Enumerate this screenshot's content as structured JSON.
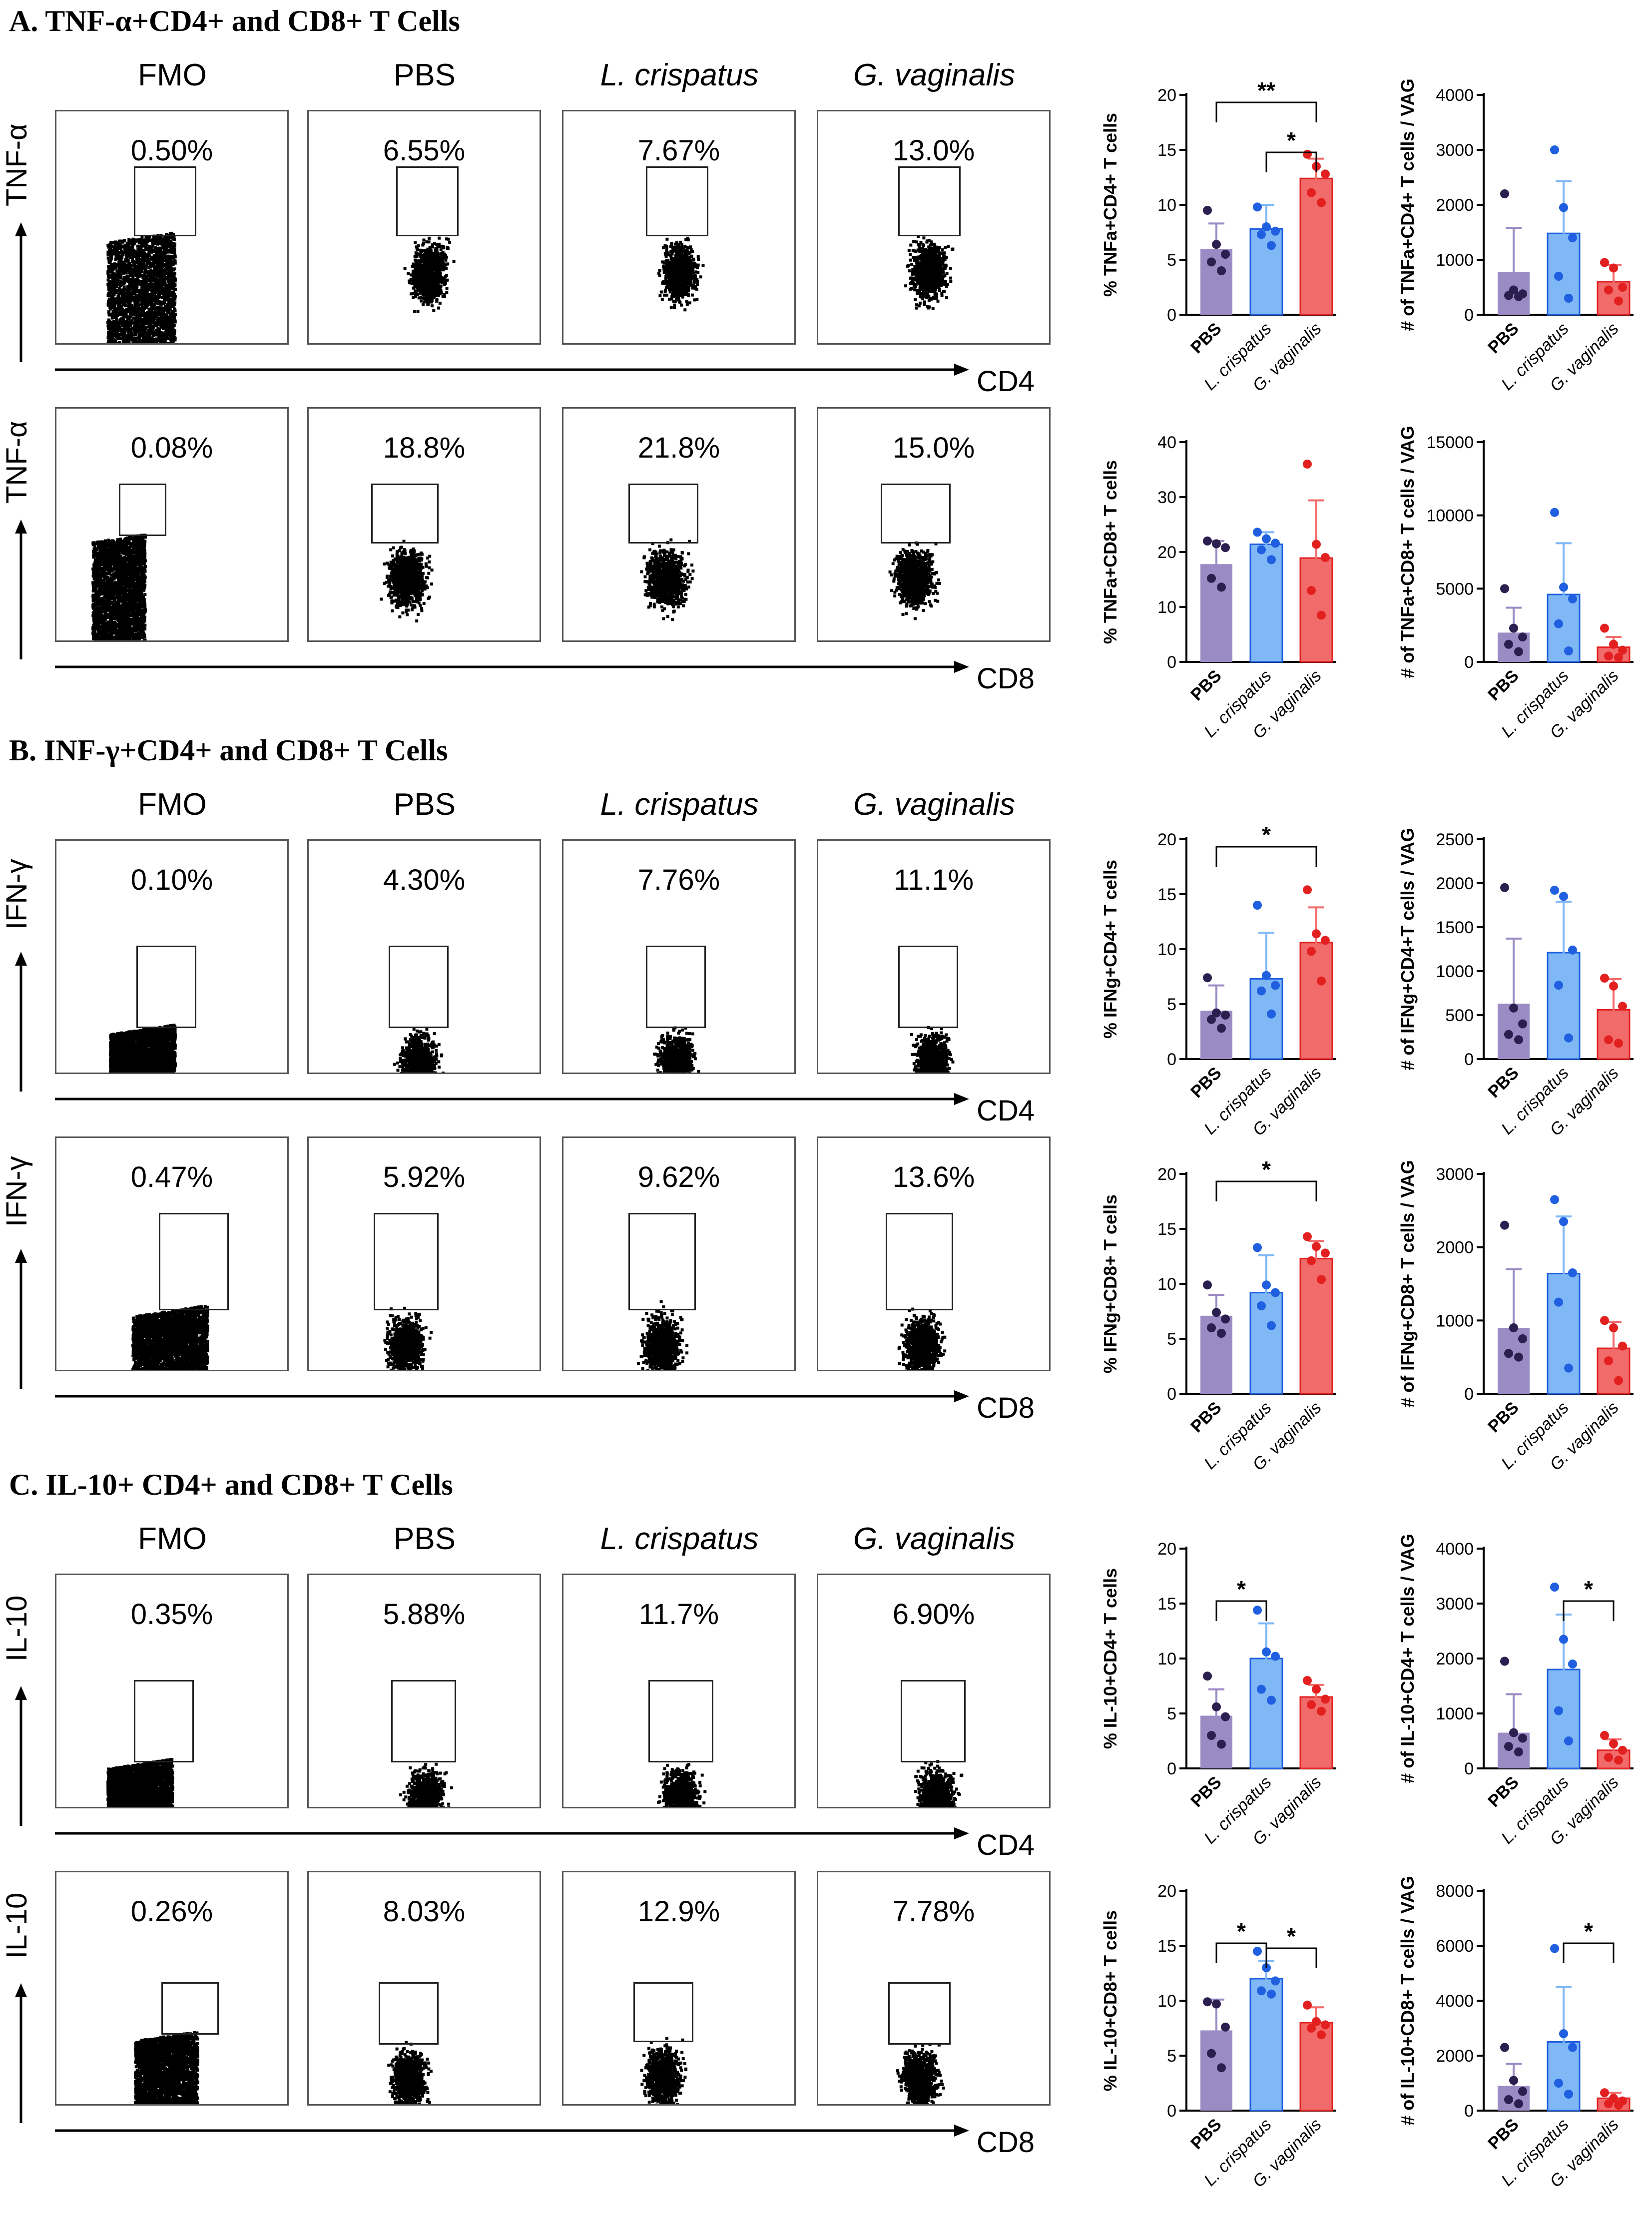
{
  "sections": [
    {
      "title": "A. TNF-α+CD4+ and CD8+ T Cells",
      "columns": [
        "FMO",
        "PBS",
        "L. crispatus",
        "G. vaginalis"
      ],
      "rows": [
        {
          "marker": "TNF-α",
          "xaxis": "CD4",
          "percents": [
            "0.50%",
            "6.55%",
            "7.67%",
            "13.0%"
          ]
        },
        {
          "marker": "TNF-α",
          "xaxis": "CD8",
          "percents": [
            "0.08%",
            "18.8%",
            "21.8%",
            "15.0%"
          ]
        }
      ]
    },
    {
      "title": "B. INF-γ+CD4+ and CD8+ T Cells",
      "columns": [
        "FMO",
        "PBS",
        "L. crispatus",
        "G. vaginalis"
      ],
      "rows": [
        {
          "marker": "IFN-γ",
          "xaxis": "CD4",
          "percents": [
            "0.10%",
            "4.30%",
            "7.76%",
            "11.1%"
          ]
        },
        {
          "marker": "IFN-γ",
          "xaxis": "CD8",
          "percents": [
            "0.47%",
            "5.92%",
            "9.62%",
            "13.6%"
          ]
        }
      ]
    },
    {
      "title": "C. IL-10+ CD4+ and CD8+ T Cells",
      "columns": [
        "FMO",
        "PBS",
        "L. crispatus",
        "G. vaginalis"
      ],
      "rows": [
        {
          "marker": "IL-10",
          "xaxis": "CD4",
          "percents": [
            "0.35%",
            "5.88%",
            "11.7%",
            "6.90%"
          ]
        },
        {
          "marker": "IL-10",
          "xaxis": "CD8",
          "percents": [
            "0.26%",
            "8.03%",
            "12.9%",
            "7.78%"
          ]
        }
      ]
    }
  ],
  "colors": {
    "PBS": "#9b8bc4",
    "L. crispatus": "#7fb8f5",
    "G. vaginalis": "#f26b6b",
    "PBS_dot": "#2a1f4f",
    "L. crispatus_dot": "#1f5fe0",
    "G. vaginalis_dot": "#e32020"
  },
  "chart_data": [
    {
      "type": "bar",
      "ylabel": "% TNFa+CD4+ T cells",
      "categories": [
        "PBS",
        "L. crispatus",
        "G. vaginalis"
      ],
      "ylim": [
        0,
        20
      ],
      "yticks": [
        0,
        5,
        10,
        15,
        20
      ],
      "values": [
        6.0,
        7.8,
        12.4
      ],
      "errors": [
        2.3,
        2.2,
        1.8
      ],
      "points": [
        [
          9.5,
          6.4,
          5.5,
          4.8,
          4.0
        ],
        [
          9.8,
          8.0,
          7.6,
          7.3,
          6.3
        ],
        [
          14.6,
          13.5,
          12.8,
          11.1,
          10.2
        ]
      ],
      "sig": [
        {
          "from": 0,
          "to": 2,
          "label": "**"
        },
        {
          "from": 1,
          "to": 2,
          "label": "*"
        }
      ]
    },
    {
      "type": "bar",
      "ylabel": "# of TNFa+CD4+ T cells / VAG",
      "categories": [
        "PBS",
        "L. crispatus",
        "G. vaginalis"
      ],
      "ylim": [
        0,
        4000
      ],
      "yticks": [
        0,
        1000,
        2000,
        3000,
        4000
      ],
      "values": [
        780,
        1480,
        600
      ],
      "errors": [
        800,
        950,
        300
      ],
      "points": [
        [
          2200,
          450,
          380,
          350,
          330
        ],
        [
          3000,
          1950,
          1400,
          700,
          300
        ],
        [
          950,
          850,
          500,
          450,
          250
        ]
      ],
      "sig": []
    },
    {
      "type": "bar",
      "ylabel": "% TNFa+CD8+ T cells",
      "categories": [
        "PBS",
        "L. crispatus",
        "G. vaginalis"
      ],
      "ylim": [
        0,
        40
      ],
      "yticks": [
        0,
        10,
        20,
        30,
        40
      ],
      "values": [
        17.8,
        21.4,
        18.9
      ],
      "errors": [
        4.2,
        2.2,
        10.5
      ],
      "points": [
        [
          22,
          21.5,
          20.8,
          15.2,
          13.6
        ],
        [
          23.6,
          22.4,
          21.6,
          20.4,
          18.6
        ],
        [
          36,
          21.4,
          19.0,
          13.0,
          8.5
        ]
      ],
      "sig": []
    },
    {
      "type": "bar",
      "ylabel": "# of TNFa+CD8+ T cells / VAG",
      "categories": [
        "PBS",
        "L. crispatus",
        "G. vaginalis"
      ],
      "ylim": [
        0,
        15000
      ],
      "yticks": [
        0,
        5000,
        10000,
        15000
      ],
      "values": [
        2000,
        4600,
        1000
      ],
      "errors": [
        1700,
        3500,
        700
      ],
      "points": [
        [
          5000,
          2300,
          1700,
          1200,
          700
        ],
        [
          10200,
          5100,
          4300,
          2600,
          750
        ],
        [
          2300,
          1200,
          800,
          400,
          300
        ]
      ],
      "sig": []
    },
    {
      "type": "bar",
      "ylabel": "% IFNg+CD4+ T cells",
      "categories": [
        "PBS",
        "L. crispatus",
        "G. vaginalis"
      ],
      "ylim": [
        0,
        20
      ],
      "yticks": [
        0,
        5,
        10,
        15,
        20
      ],
      "values": [
        4.4,
        7.3,
        10.6
      ],
      "errors": [
        2.3,
        4.2,
        3.2
      ],
      "points": [
        [
          7.4,
          4.2,
          4.0,
          3.6,
          2.8
        ],
        [
          14.0,
          7.6,
          6.7,
          6.2,
          4.1
        ],
        [
          15.4,
          11.4,
          10.8,
          9.8,
          7.1
        ]
      ],
      "sig": [
        {
          "from": 0,
          "to": 2,
          "label": "*"
        }
      ]
    },
    {
      "type": "bar",
      "ylabel": "# of IFNg+CD4+T cells / VAG",
      "categories": [
        "PBS",
        "L. crispatus",
        "G. vaginalis"
      ],
      "ylim": [
        0,
        2500
      ],
      "yticks": [
        0,
        500,
        1000,
        1500,
        2000,
        2500
      ],
      "values": [
        630,
        1210,
        560
      ],
      "errors": [
        740,
        580,
        350
      ],
      "points": [
        [
          1950,
          580,
          400,
          280,
          220
        ],
        [
          1920,
          1850,
          1240,
          840,
          240
        ],
        [
          920,
          830,
          600,
          220,
          180
        ]
      ],
      "sig": []
    },
    {
      "type": "bar",
      "ylabel": "% IFNg+CD8+ T cells",
      "categories": [
        "PBS",
        "L. crispatus",
        "G. vaginalis"
      ],
      "ylim": [
        0,
        20
      ],
      "yticks": [
        0,
        5,
        10,
        15,
        20
      ],
      "values": [
        7.1,
        9.2,
        12.3
      ],
      "errors": [
        1.9,
        3.4,
        1.6
      ],
      "points": [
        [
          9.9,
          7.4,
          6.8,
          6.0,
          5.5
        ],
        [
          13.3,
          9.9,
          9.2,
          8.0,
          6.2
        ],
        [
          14.3,
          13.4,
          12.8,
          12.1,
          10.4
        ]
      ],
      "sig": [
        {
          "from": 0,
          "to": 2,
          "label": "*"
        }
      ]
    },
    {
      "type": "bar",
      "ylabel": "# of IFNg+CD8+ T cells / VAG",
      "categories": [
        "PBS",
        "L. crispatus",
        "G. vaginalis"
      ],
      "ylim": [
        0,
        3000
      ],
      "yticks": [
        0,
        1000,
        2000,
        3000
      ],
      "values": [
        900,
        1640,
        620
      ],
      "errors": [
        800,
        780,
        360
      ],
      "points": [
        [
          2300,
          900,
          750,
          550,
          500
        ],
        [
          2650,
          2350,
          1650,
          1250,
          350
        ],
        [
          1000,
          900,
          650,
          450,
          180
        ]
      ],
      "sig": []
    },
    {
      "type": "bar",
      "ylabel": "% IL-10+CD4+ T cells",
      "categories": [
        "PBS",
        "L. crispatus",
        "G. vaginalis"
      ],
      "ylim": [
        0,
        20
      ],
      "yticks": [
        0,
        5,
        10,
        15,
        20
      ],
      "values": [
        4.8,
        10.0,
        6.5
      ],
      "errors": [
        2.4,
        3.2,
        1.1
      ],
      "points": [
        [
          8.4,
          5.6,
          4.7,
          3.0,
          2.2
        ],
        [
          14.4,
          10.6,
          10.2,
          7.2,
          6.2
        ],
        [
          8.0,
          7.2,
          6.3,
          5.8,
          5.2
        ]
      ],
      "sig": [
        {
          "from": 0,
          "to": 1,
          "label": "*"
        }
      ]
    },
    {
      "type": "bar",
      "ylabel": "# of IL-10+CD4+ T cells / VAG",
      "categories": [
        "PBS",
        "L. crispatus",
        "G. vaginalis"
      ],
      "ylim": [
        0,
        4000
      ],
      "yticks": [
        0,
        1000,
        2000,
        3000,
        4000
      ],
      "values": [
        650,
        1800,
        330
      ],
      "errors": [
        700,
        1000,
        200
      ],
      "points": [
        [
          1950,
          650,
          550,
          400,
          300
        ],
        [
          3300,
          2350,
          1900,
          1050,
          500
        ],
        [
          600,
          450,
          330,
          200,
          150
        ]
      ],
      "sig": [
        {
          "from": 1,
          "to": 2,
          "label": "*"
        }
      ]
    },
    {
      "type": "bar",
      "ylabel": "% IL-10+CD8+ T cells",
      "categories": [
        "PBS",
        "L. crispatus",
        "G. vaginalis"
      ],
      "ylim": [
        0,
        20
      ],
      "yticks": [
        0,
        5,
        10,
        15,
        20
      ],
      "values": [
        7.3,
        12.0,
        8.0
      ],
      "errors": [
        2.8,
        1.6,
        1.4
      ],
      "points": [
        [
          9.9,
          9.7,
          7.6,
          5.2,
          3.9
        ],
        [
          14.5,
          13.0,
          11.8,
          10.9,
          10.6
        ],
        [
          9.6,
          8.1,
          7.8,
          7.5,
          6.9
        ]
      ],
      "sig": [
        {
          "from": 0,
          "to": 1,
          "label": "*"
        },
        {
          "from": 1,
          "to": 2,
          "label": "*"
        }
      ]
    },
    {
      "type": "bar",
      "ylabel": "# of IL-10+CD8+ T cells / VAG",
      "categories": [
        "PBS",
        "L. crispatus",
        "G. vaginalis"
      ],
      "ylim": [
        0,
        8000
      ],
      "yticks": [
        0,
        2000,
        4000,
        6000,
        8000
      ],
      "values": [
        900,
        2500,
        450
      ],
      "errors": [
        800,
        2000,
        200
      ],
      "points": [
        [
          2300,
          1100,
          700,
          400,
          250
        ],
        [
          5900,
          2800,
          2300,
          1000,
          600
        ],
        [
          650,
          450,
          350,
          250,
          200
        ]
      ],
      "sig": [
        {
          "from": 1,
          "to": 2,
          "label": "*"
        }
      ]
    }
  ]
}
